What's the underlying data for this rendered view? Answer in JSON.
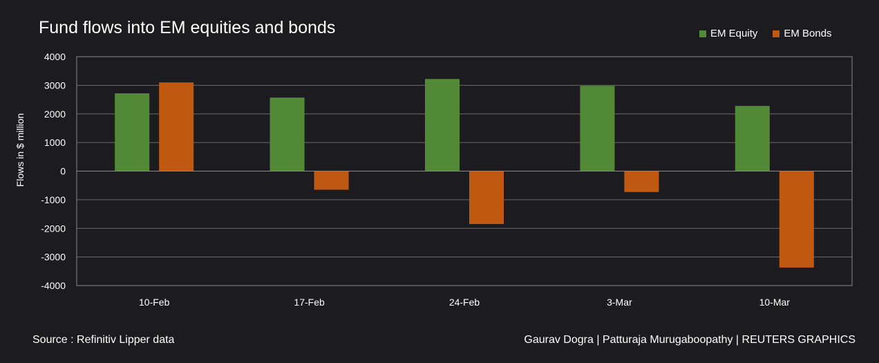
{
  "chart_data": {
    "type": "bar",
    "title": "Fund flows into EM equities and bonds",
    "xlabel": "",
    "ylabel": "Flows in $ million",
    "categories": [
      "10-Feb",
      "17-Feb",
      "24-Feb",
      "3-Mar",
      "10-Mar"
    ],
    "series": [
      {
        "name": "EM Equity",
        "color": "#538a37",
        "values": [
          2720,
          2570,
          3220,
          2980,
          2280
        ]
      },
      {
        "name": "EM Bonds",
        "color": "#c05a13",
        "values": [
          3100,
          -650,
          -1850,
          -730,
          -3370
        ]
      }
    ],
    "ylim": [
      -4000,
      4000
    ],
    "yticks": [
      -4000,
      -3000,
      -2000,
      -1000,
      0,
      1000,
      2000,
      3000,
      4000
    ],
    "grid": true,
    "legend_position": "top-right"
  },
  "footer": {
    "source": "Source : Refinitiv Lipper data",
    "credit": "Gaurav Dogra | Patturaja Murugaboopathy | REUTERS GRAPHICS"
  }
}
